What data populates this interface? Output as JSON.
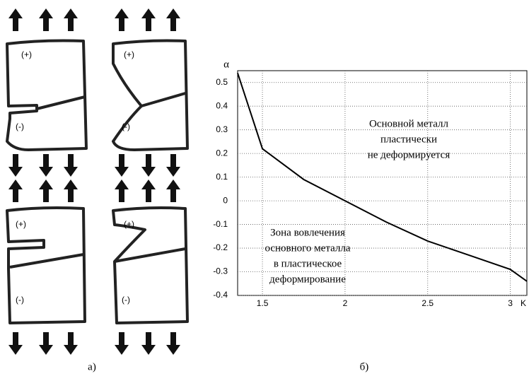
{
  "chart_data": {
    "type": "line",
    "y_label": "α",
    "x_label": "K",
    "x": [
      1.35,
      1.5,
      1.75,
      2,
      2.25,
      2.5,
      2.75,
      3,
      3.1
    ],
    "series": [
      {
        "color": "#000000",
        "values": [
          0.54,
          0.22,
          0.09,
          0,
          -0.09,
          -0.17,
          -0.23,
          -0.29,
          -0.34
        ]
      }
    ],
    "xlim": [
      1.35,
      3.1
    ],
    "xticks": [
      1.5,
      2,
      2.5,
      3
    ],
    "ylim": [
      -0.4,
      0.55
    ],
    "yticks": [
      -0.4,
      -0.3,
      -0.2,
      -0.1,
      0,
      0.1,
      0.2,
      0.3,
      0.4,
      0.5
    ],
    "grid": true,
    "annotations": [
      [
        "Основной металл",
        "пластически",
        "не деформируется"
      ],
      [
        "Зона вовлечения",
        "основного металла",
        "в пластическое",
        "деформирование"
      ]
    ],
    "caption": "б)"
  },
  "diagram": {
    "caption": "а)",
    "panels": [
      {
        "plus": "(+)",
        "minus": "(-)"
      },
      {
        "plus": "(+)",
        "minus": "(-)"
      },
      {
        "plus": "(+)",
        "minus": "(-)"
      },
      {
        "plus": "(+)",
        "minus": "(-)"
      }
    ]
  }
}
